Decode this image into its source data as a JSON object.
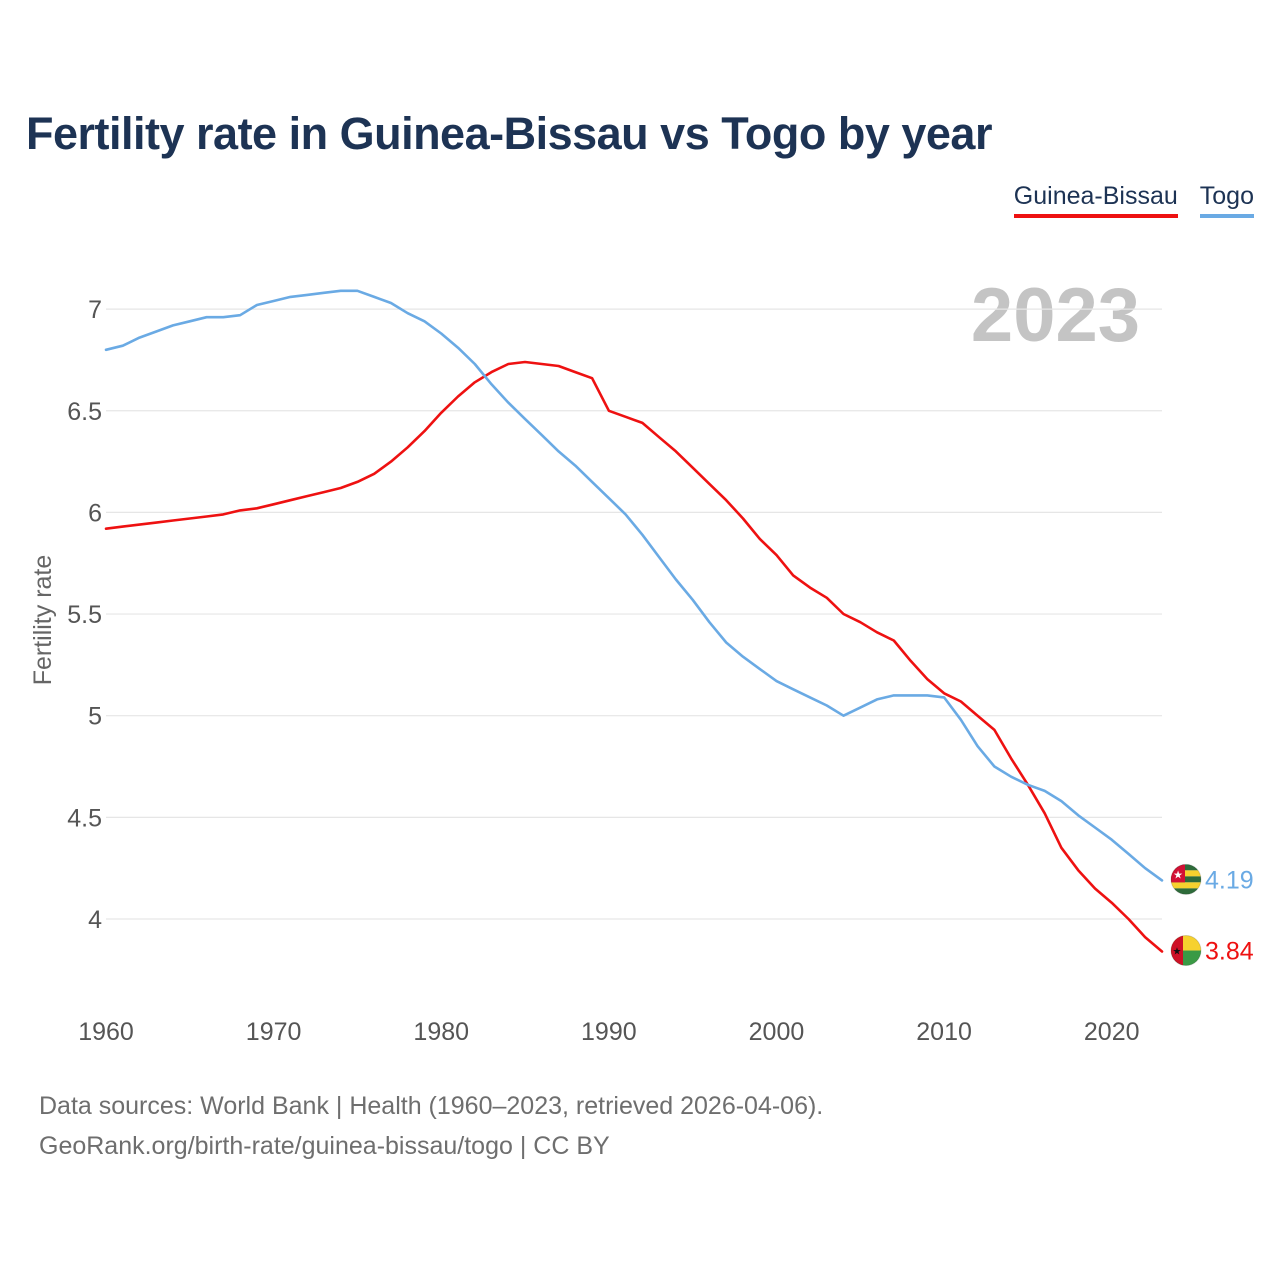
{
  "title": "Fertility rate in Guinea-Bissau vs Togo by year",
  "year_label": "2023",
  "legend": [
    {
      "name": "Guinea-Bissau",
      "color": "#ee1111"
    },
    {
      "name": "Togo",
      "color": "#6aaae4"
    }
  ],
  "footer": {
    "sources": "Data sources: World Bank | Health (1960–2023, retrieved 2026-04-06).",
    "link": "GeoRank.org/birth-rate/guinea-bissau/togo | CC BY"
  },
  "chart_data": {
    "type": "line",
    "title": "Fertility rate in Guinea-Bissau vs Togo by year",
    "xlabel": "",
    "ylabel": "Fertility rate",
    "xlim": [
      1960,
      2023
    ],
    "ylim": [
      3.6,
      7.3
    ],
    "x_ticks": [
      "1960",
      "1970",
      "1980",
      "1990",
      "2000",
      "2010",
      "2020"
    ],
    "y_ticks": [
      "4",
      "4.5",
      "5",
      "5.5",
      "6",
      "6.5",
      "7"
    ],
    "grid": true,
    "x": [
      1960,
      1961,
      1962,
      1963,
      1964,
      1965,
      1966,
      1967,
      1968,
      1969,
      1970,
      1971,
      1972,
      1973,
      1974,
      1975,
      1976,
      1977,
      1978,
      1979,
      1980,
      1981,
      1982,
      1983,
      1984,
      1985,
      1986,
      1987,
      1988,
      1989,
      1990,
      1991,
      1992,
      1993,
      1994,
      1995,
      1996,
      1997,
      1998,
      1999,
      2000,
      2001,
      2002,
      2003,
      2004,
      2005,
      2006,
      2007,
      2008,
      2009,
      2010,
      2011,
      2012,
      2013,
      2014,
      2015,
      2016,
      2017,
      2018,
      2019,
      2020,
      2021,
      2022,
      2023
    ],
    "series": [
      {
        "name": "Guinea-Bissau",
        "color": "#ee1111",
        "end_label": "3.84",
        "values": [
          5.92,
          5.93,
          5.94,
          5.95,
          5.96,
          5.97,
          5.98,
          5.99,
          6.01,
          6.02,
          6.04,
          6.06,
          6.08,
          6.1,
          6.12,
          6.15,
          6.19,
          6.25,
          6.32,
          6.4,
          6.49,
          6.57,
          6.64,
          6.69,
          6.73,
          6.74,
          6.73,
          6.72,
          6.69,
          6.66,
          6.5,
          6.47,
          6.44,
          6.37,
          6.3,
          6.22,
          6.14,
          6.06,
          5.97,
          5.87,
          5.79,
          5.69,
          5.63,
          5.58,
          5.5,
          5.46,
          5.41,
          5.37,
          5.27,
          5.18,
          5.11,
          5.07,
          5.0,
          4.93,
          4.79,
          4.66,
          4.52,
          4.35,
          4.24,
          4.15,
          4.08,
          4.0,
          3.91,
          3.84
        ]
      },
      {
        "name": "Togo",
        "color": "#6aaae4",
        "end_label": "4.19",
        "values": [
          6.8,
          6.82,
          6.86,
          6.89,
          6.92,
          6.94,
          6.96,
          6.96,
          6.97,
          7.02,
          7.04,
          7.06,
          7.07,
          7.08,
          7.09,
          7.09,
          7.06,
          7.03,
          6.98,
          6.94,
          6.88,
          6.81,
          6.73,
          6.63,
          6.54,
          6.46,
          6.38,
          6.3,
          6.23,
          6.15,
          6.07,
          5.99,
          5.89,
          5.78,
          5.67,
          5.57,
          5.46,
          5.36,
          5.29,
          5.23,
          5.17,
          5.13,
          5.09,
          5.05,
          5.0,
          5.04,
          5.08,
          5.1,
          5.1,
          5.1,
          5.09,
          4.98,
          4.85,
          4.75,
          4.7,
          4.66,
          4.63,
          4.58,
          4.51,
          4.45,
          4.39,
          4.32,
          4.25,
          4.19
        ]
      }
    ]
  }
}
